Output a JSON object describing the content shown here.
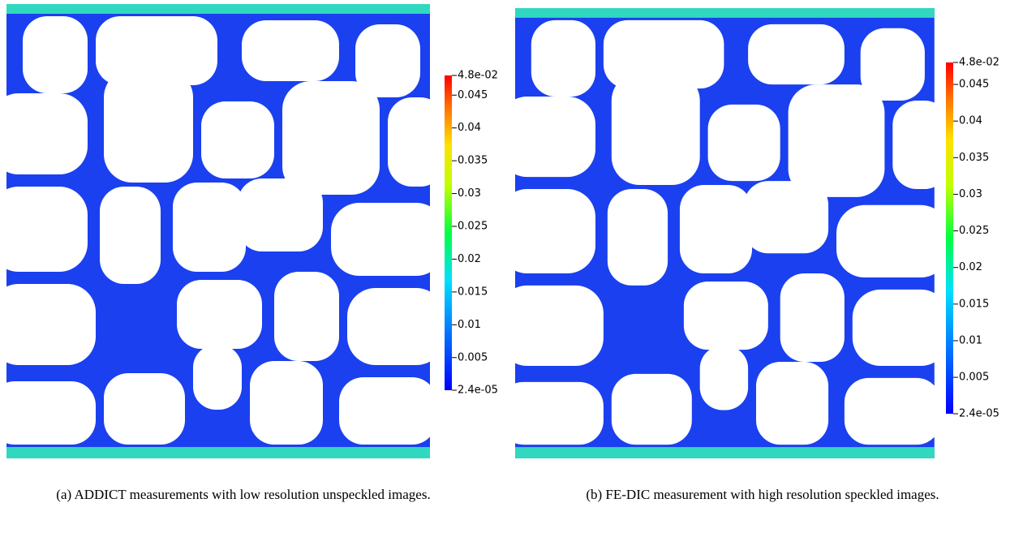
{
  "figures": [
    {
      "caption": "(a) ADDICT measurements with low resolution unspeckled images.",
      "colorbar": {
        "ticks": [
          {
            "value": 0.048,
            "label": "4.8e-02"
          },
          0.045,
          0.04,
          0.035,
          0.03,
          0.025,
          0.02,
          0.015,
          0.01,
          0.005,
          {
            "value": 2.4e-05,
            "label": "2.4e-05"
          }
        ]
      }
    },
    {
      "caption": "(b) FE-DIC measurement with high resolution speckled images.",
      "colorbar": {
        "ticks": [
          {
            "value": 0.048,
            "label": "4.8e-02"
          },
          0.045,
          0.04,
          0.035,
          0.03,
          0.025,
          0.02,
          0.015,
          0.01,
          0.005,
          {
            "value": 2.4e-05,
            "label": "2.4e-05"
          }
        ]
      }
    }
  ]
}
